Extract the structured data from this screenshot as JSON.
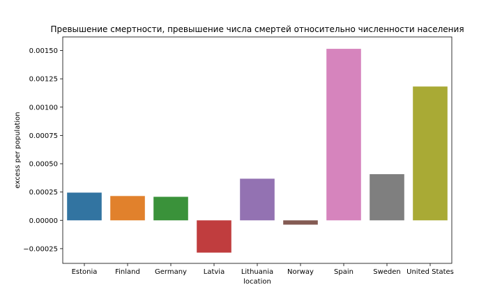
{
  "chart_data": {
    "type": "bar",
    "title": "Превышение смертности, превышение числа смертей относительно численности населения",
    "xlabel": "location",
    "ylabel": "excess per population",
    "categories": [
      "Estonia",
      "Finland",
      "Germany",
      "Latvia",
      "Lithuania",
      "Norway",
      "Spain",
      "Sweden",
      "United States"
    ],
    "values": [
      0.000245,
      0.000215,
      0.000208,
      -0.000285,
      0.000368,
      -3.8e-05,
      0.001515,
      0.000408,
      0.001182
    ],
    "colors": [
      "#3274a1",
      "#e1812c",
      "#3a923a",
      "#c03d3e",
      "#9372b2",
      "#845b53",
      "#d684bd",
      "#7f7f7f",
      "#a9aa35"
    ],
    "ylim": [
      -0.00038,
      0.00162
    ],
    "yticks": [
      -0.00025,
      0.0,
      0.00025,
      0.0005,
      0.00075,
      0.001,
      0.00125,
      0.0015
    ],
    "ytick_labels": [
      "−0.00025",
      "0.00000",
      "0.00025",
      "0.00050",
      "0.00075",
      "0.00100",
      "0.00125",
      "0.00150"
    ],
    "grid": false,
    "legend": "none"
  }
}
